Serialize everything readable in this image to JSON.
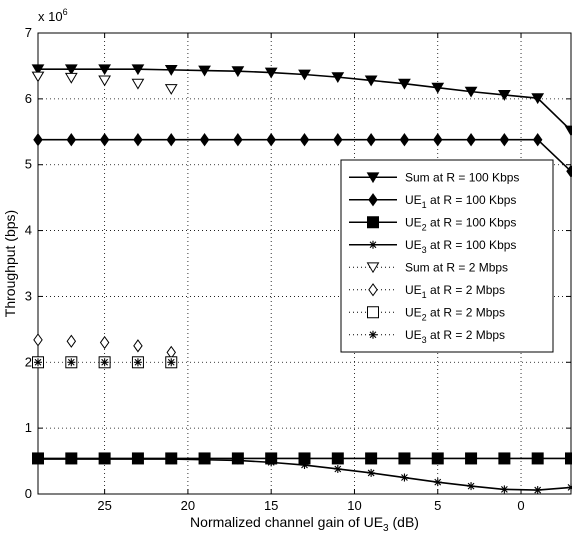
{
  "chart_data": {
    "type": "line",
    "xlabel": "Normalized channel gain of UE",
    "xlabel_sub": "3",
    "xlabel_unit": " (dB)",
    "ylabel": "Throughput (bps)",
    "y_multiplier": "x 10",
    "y_multiplier_exp": "6",
    "xlim": [
      29,
      -3
    ],
    "ylim": [
      0,
      7
    ],
    "x_reversed": true,
    "grid": true,
    "legend_placement": "right",
    "xticks": [
      25,
      20,
      15,
      10,
      5,
      0
    ],
    "yticks": [
      0,
      1,
      2,
      3,
      4,
      5,
      6,
      7
    ],
    "series": [
      {
        "name": "Sum at R = 100 Kbps",
        "ue": "",
        "label_prefix": "Sum",
        "label_suffix": " at R = 100 Kbps",
        "marker": "tri-down-filled",
        "line": "solid",
        "x": [
          29,
          27,
          25,
          23,
          21,
          19,
          17,
          15,
          13,
          11,
          9,
          7,
          5,
          3,
          1,
          -1,
          -3
        ],
        "y": [
          6.45,
          6.45,
          6.45,
          6.45,
          6.44,
          6.43,
          6.42,
          6.4,
          6.37,
          6.33,
          6.28,
          6.23,
          6.17,
          6.11,
          6.06,
          6.01,
          5.52
        ]
      },
      {
        "name": "UE1 at R = 100 Kbps",
        "label_prefix": "UE",
        "label_sub": "1",
        "label_suffix": " at R = 100 Kbps",
        "marker": "diamond-filled",
        "line": "solid",
        "x": [
          29,
          27,
          25,
          23,
          21,
          19,
          17,
          15,
          13,
          11,
          9,
          7,
          5,
          3,
          1,
          -1,
          -3
        ],
        "y": [
          5.38,
          5.38,
          5.38,
          5.38,
          5.38,
          5.38,
          5.38,
          5.38,
          5.38,
          5.38,
          5.38,
          5.38,
          5.38,
          5.38,
          5.38,
          5.38,
          4.9
        ]
      },
      {
        "name": "UE2 at R = 100 Kbps",
        "label_prefix": "UE",
        "label_sub": "2",
        "label_suffix": " at R = 100 Kbps",
        "marker": "square-filled",
        "line": "solid",
        "x": [
          29,
          27,
          25,
          23,
          21,
          19,
          17,
          15,
          13,
          11,
          9,
          7,
          5,
          3,
          1,
          -1,
          -3
        ],
        "y": [
          0.54,
          0.54,
          0.54,
          0.54,
          0.54,
          0.54,
          0.54,
          0.54,
          0.54,
          0.54,
          0.54,
          0.54,
          0.54,
          0.54,
          0.54,
          0.54,
          0.54
        ]
      },
      {
        "name": "UE3 at R = 100 Kbps",
        "label_prefix": "UE",
        "label_sub": "3",
        "label_suffix": " at R = 100 Kbps",
        "marker": "star",
        "line": "solid",
        "x": [
          29,
          27,
          25,
          23,
          21,
          19,
          17,
          15,
          13,
          11,
          9,
          7,
          5,
          3,
          1,
          -1,
          -3
        ],
        "y": [
          0.53,
          0.53,
          0.53,
          0.53,
          0.53,
          0.52,
          0.51,
          0.48,
          0.44,
          0.38,
          0.32,
          0.25,
          0.18,
          0.12,
          0.07,
          0.06,
          0.1
        ]
      },
      {
        "name": "Sum at R = 2 Mbps",
        "label_prefix": "Sum",
        "label_suffix": " at R = 2 Mbps",
        "marker": "tri-down-open",
        "line": "dotted",
        "x": [
          29,
          27,
          25,
          23,
          21
        ],
        "y": [
          6.34,
          6.32,
          6.28,
          6.23,
          6.15
        ]
      },
      {
        "name": "UE1 at R = 2 Mbps",
        "label_prefix": "UE",
        "label_sub": "1",
        "label_suffix": " at R = 2 Mbps",
        "marker": "diamond-open",
        "line": "dotted",
        "x": [
          29,
          27,
          25,
          23,
          21
        ],
        "y": [
          2.34,
          2.32,
          2.3,
          2.25,
          2.15
        ]
      },
      {
        "name": "UE2 at R = 2 Mbps",
        "label_prefix": "UE",
        "label_sub": "2",
        "label_suffix": " at R = 2 Mbps",
        "marker": "square-open",
        "line": "dotted",
        "x": [
          29,
          27,
          25,
          23,
          21
        ],
        "y": [
          2.0,
          2.0,
          2.0,
          2.0,
          2.0
        ]
      },
      {
        "name": "UE3 at R = 2 Mbps",
        "label_prefix": "UE",
        "label_sub": "3",
        "label_suffix": " at R = 2 Mbps",
        "marker": "star",
        "line": "dotted",
        "x": [
          29,
          27,
          25,
          23,
          21
        ],
        "y": [
          2.0,
          2.0,
          2.0,
          2.0,
          2.0
        ]
      }
    ]
  }
}
